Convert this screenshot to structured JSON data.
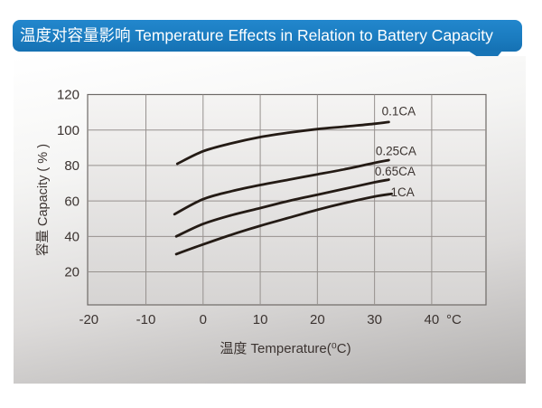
{
  "title": {
    "text": "温度对容量影响 Temperature Effects in Relation to Battery Capacity"
  },
  "colors": {
    "bubble_blue_top": "#2287cd",
    "bubble_blue_bottom": "#1571b3",
    "bubble_text": "#ffffff",
    "panel_top": "#ffffff",
    "panel_bottom": "#b2b0af",
    "plot_bg_top": "#f5f4f3",
    "plot_bg_bottom": "#d6d4d3",
    "plot_border": "#6e6a67",
    "grid": "#96918e",
    "curve": "#241b15",
    "text": "#3b3330"
  },
  "chart_data": {
    "type": "line",
    "title": "温度对容量影响 Temperature Effects in Relation to Battery Capacity",
    "xlabel": "温度  Temperature(⁰C)",
    "ylabel": "容量 Capacity ( % )",
    "x_axis_unit_suffix": "°C",
    "x_ticks": [
      -20,
      -10,
      0,
      10,
      20,
      30,
      40
    ],
    "y_ticks": [
      120,
      100,
      80,
      60,
      40,
      20
    ],
    "xlim": [
      -20.2,
      49.5
    ],
    "ylim": [
      1.4,
      120
    ],
    "grid": true,
    "legend_position": "inline-right-of-curves",
    "series": [
      {
        "name": "0.1CA",
        "label_dx": 11,
        "label_dy": -12,
        "points": [
          [
            -4.5,
            81
          ],
          [
            0,
            88
          ],
          [
            5,
            92.5
          ],
          [
            10,
            96
          ],
          [
            15,
            98.5
          ],
          [
            20,
            100.5
          ],
          [
            25,
            102
          ],
          [
            30,
            103.5
          ],
          [
            32.5,
            104.5
          ]
        ]
      },
      {
        "name": "0.25CA",
        "label_dx": 8,
        "label_dy": -10,
        "points": [
          [
            -5,
            52.5
          ],
          [
            0,
            61
          ],
          [
            5,
            65.5
          ],
          [
            10,
            69
          ],
          [
            15,
            72
          ],
          [
            20,
            75
          ],
          [
            25,
            78
          ],
          [
            30,
            81.5
          ],
          [
            32.5,
            83
          ]
        ]
      },
      {
        "name": "0.65CA",
        "label_dx": 7,
        "label_dy": -9,
        "points": [
          [
            -4.7,
            40
          ],
          [
            0,
            47
          ],
          [
            5,
            52
          ],
          [
            10,
            56
          ],
          [
            15,
            60
          ],
          [
            20,
            63.5
          ],
          [
            25,
            67
          ],
          [
            30,
            70.5
          ],
          [
            32.5,
            72
          ]
        ]
      },
      {
        "name": "1CA",
        "label_dx": 12,
        "label_dy": -2,
        "points": [
          [
            -4.7,
            30
          ],
          [
            0,
            35.5
          ],
          [
            5,
            41
          ],
          [
            10,
            46
          ],
          [
            15,
            50.5
          ],
          [
            20,
            55
          ],
          [
            25,
            59
          ],
          [
            30,
            62.5
          ],
          [
            33,
            64
          ]
        ]
      }
    ]
  }
}
